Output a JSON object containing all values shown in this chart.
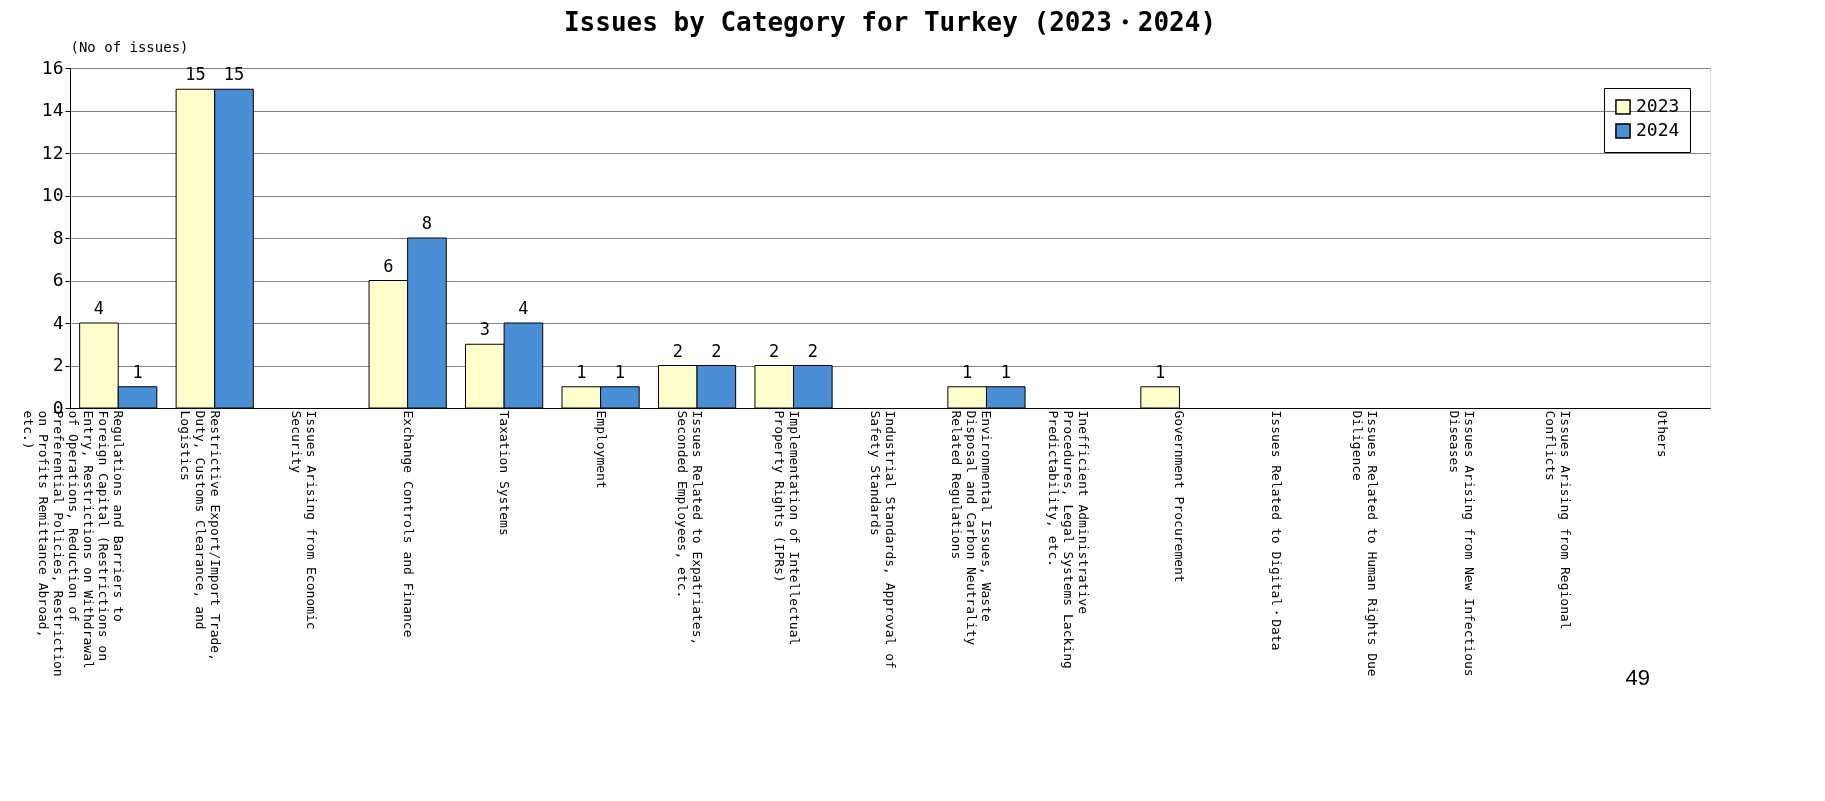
{
  "chart_data": {
    "type": "bar",
    "title": "Issues by Category for Turkey (2023・2024)",
    "ylabel": "(No of issues)",
    "categories": [
      "Regulations and Barriers to Foreign Capital (Restrictions on Entry, Restrictions on Withdrawal of Operations, Reduction of Preferential Policies, Restriction on Profits Remittance Abroad, etc.)",
      "Restrictive Export/Import Trade, Duty, Customs Clearance, and Logistics",
      "Issues Arising from Economic Security",
      "Exchange Controls and Finance",
      "Taxation Systems",
      "Employment",
      "Issues Related to Expatriates, Seconded Employees, etc.",
      "Implementation of Intellectual Property Rights (IPRs)",
      "Industrial Standards, Approval of Safety Standards",
      "Environmental Issues, Waste Disposal and Carbon Neutrality Related Regulations",
      "Inefficient Administrative Procedures, Legal Systems Lacking Predictability, etc.",
      "Government Procurement",
      "Issues Related to Digital・Data",
      "Issues Related to Human Rights Due Diligence",
      "Issues Arising from New Infectious Diseases",
      "Issues Arising from Regional Conflicts",
      "Others"
    ],
    "series": [
      {
        "name": "2023",
        "color": "#ffffcc",
        "values": [
          4,
          15,
          0,
          6,
          3,
          1,
          2,
          2,
          0,
          1,
          0,
          1,
          0,
          0,
          0,
          0,
          0
        ],
        "value_labels": [
          "4",
          "15",
          null,
          "6",
          "3",
          "1",
          "2",
          "2",
          null,
          "1",
          null,
          "1",
          null,
          null,
          null,
          null,
          null
        ]
      },
      {
        "name": "2024",
        "color": "#4a8fd6",
        "values": [
          1,
          15,
          0,
          8,
          4,
          1,
          2,
          2,
          0,
          1,
          0,
          0,
          0,
          0,
          0,
          0,
          0
        ],
        "value_labels": [
          "1",
          "15",
          null,
          "8",
          "4",
          "1",
          "2",
          "2",
          null,
          "1",
          null,
          null,
          null,
          null,
          null,
          null,
          null
        ]
      }
    ],
    "ylim": [
      0,
      16
    ],
    "yticks": [
      0,
      2,
      4,
      6,
      8,
      10,
      12,
      14,
      16
    ],
    "grid": "y",
    "legend": "top right",
    "annotations": [
      "49"
    ]
  }
}
